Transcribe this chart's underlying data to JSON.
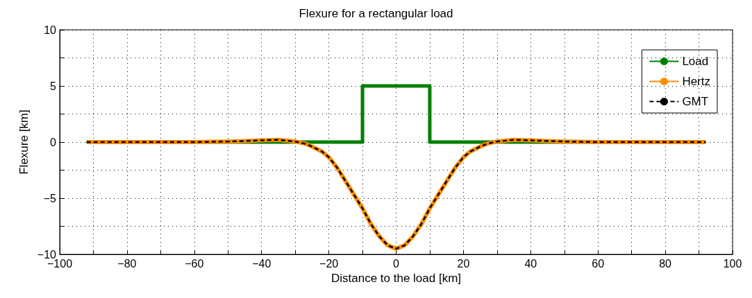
{
  "chart_data": {
    "type": "line",
    "title": "Flexure for a rectangular load",
    "xlabel": "Distance to the load [km]",
    "ylabel": "Flexure [km]",
    "xlim": [
      -100,
      100
    ],
    "ylim": [
      -10,
      10
    ],
    "xticks": [
      {
        "value": -100,
        "label": "−100"
      },
      {
        "value": -90,
        "label": null
      },
      {
        "value": -80,
        "label": "−80"
      },
      {
        "value": -70,
        "label": null
      },
      {
        "value": -60,
        "label": "−60"
      },
      {
        "value": -50,
        "label": null
      },
      {
        "value": -40,
        "label": "−40"
      },
      {
        "value": -30,
        "label": null
      },
      {
        "value": -20,
        "label": "−20"
      },
      {
        "value": -10,
        "label": null
      },
      {
        "value": 0,
        "label": "0"
      },
      {
        "value": 10,
        "label": null
      },
      {
        "value": 20,
        "label": "20"
      },
      {
        "value": 30,
        "label": null
      },
      {
        "value": 40,
        "label": "40"
      },
      {
        "value": 50,
        "label": null
      },
      {
        "value": 60,
        "label": "60"
      },
      {
        "value": 70,
        "label": null
      },
      {
        "value": 80,
        "label": "80"
      },
      {
        "value": 90,
        "label": null
      },
      {
        "value": 100,
        "label": "100"
      }
    ],
    "yticks": [
      {
        "value": -10,
        "label": "−10"
      },
      {
        "value": -7.5,
        "label": null
      },
      {
        "value": -5,
        "label": "−5"
      },
      {
        "value": -2.5,
        "label": null
      },
      {
        "value": 0,
        "label": "0"
      },
      {
        "value": 2.5,
        "label": null
      },
      {
        "value": 5,
        "label": "5"
      },
      {
        "value": 7.5,
        "label": null
      },
      {
        "value": 10,
        "label": "10"
      }
    ],
    "grid": true,
    "legend": "top right",
    "marker": "none",
    "series": [
      {
        "name": "Load",
        "color": "#007f00",
        "line_style": "solid",
        "x": [
          -92,
          -10,
          -10,
          10,
          10,
          92
        ],
        "values": [
          0,
          0,
          5,
          5,
          0,
          0
        ]
      },
      {
        "name": "Hertz",
        "color": "#ff8c00",
        "line_style": "solid",
        "x": [
          -92,
          -60,
          -50,
          -45,
          -40,
          -35,
          -30,
          -27,
          -25,
          -22,
          -20,
          -17.5,
          -15,
          -12.5,
          -10,
          -7.5,
          -5,
          -2.5,
          0,
          2.5,
          5,
          7.5,
          10,
          12.5,
          15,
          17.5,
          20,
          22,
          25,
          27,
          30,
          35,
          40,
          45,
          50,
          60,
          92
        ],
        "values": [
          0,
          0,
          0.05,
          0.1,
          0.15,
          0.2,
          0.05,
          -0.15,
          -0.4,
          -0.85,
          -1.35,
          -2.3,
          -3.5,
          -4.7,
          -5.9,
          -7.3,
          -8.4,
          -9.2,
          -9.5,
          -9.2,
          -8.4,
          -7.3,
          -5.9,
          -4.7,
          -3.5,
          -2.3,
          -1.35,
          -0.85,
          -0.4,
          -0.15,
          0.05,
          0.2,
          0.15,
          0.1,
          0.05,
          0,
          0
        ]
      },
      {
        "name": "GMT",
        "color": "#000000",
        "line_style": "dashed",
        "x": [
          -92,
          -60,
          -50,
          -45,
          -40,
          -35,
          -30,
          -27,
          -25,
          -22,
          -20,
          -17.5,
          -15,
          -12.5,
          -10,
          -7.5,
          -5,
          -2.5,
          0,
          2.5,
          5,
          7.5,
          10,
          12.5,
          15,
          17.5,
          20,
          22,
          25,
          27,
          30,
          35,
          40,
          45,
          50,
          60,
          92
        ],
        "values": [
          0,
          0,
          0.05,
          0.1,
          0.15,
          0.2,
          0.05,
          -0.15,
          -0.4,
          -0.85,
          -1.35,
          -2.3,
          -3.5,
          -4.7,
          -5.9,
          -7.3,
          -8.4,
          -9.2,
          -9.5,
          -9.2,
          -8.4,
          -7.3,
          -5.9,
          -4.7,
          -3.5,
          -2.3,
          -1.35,
          -0.85,
          -0.4,
          -0.15,
          0.05,
          0.2,
          0.15,
          0.1,
          0.05,
          0,
          0
        ]
      }
    ]
  }
}
